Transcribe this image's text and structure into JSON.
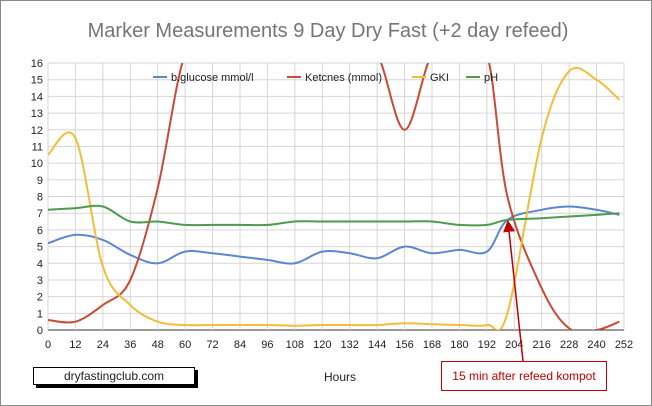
{
  "chart_data": {
    "type": "line",
    "title": "Marker Measurements 9 Day Dry Fast (+2 day refeed)",
    "xlabel": "Hours",
    "ylabel": "",
    "xlim": [
      0,
      252
    ],
    "ylim": [
      0,
      16
    ],
    "x_ticks": [
      0,
      12,
      24,
      36,
      48,
      60,
      72,
      84,
      96,
      108,
      120,
      132,
      144,
      156,
      168,
      180,
      192,
      204,
      216,
      228,
      240,
      252
    ],
    "y_ticks": [
      0,
      1,
      2,
      3,
      4,
      5,
      6,
      7,
      8,
      9,
      10,
      11,
      12,
      13,
      14,
      15,
      16
    ],
    "grid": true,
    "legend_position": "top",
    "source_label": "dryfastingclub.com",
    "annotation": {
      "text": "15 min after refeed kompot",
      "x": 201,
      "y": 6.6
    },
    "series": [
      {
        "name": "b.glucose mmol/l",
        "color": "#5b87d2",
        "points": [
          [
            0,
            5.2
          ],
          [
            12,
            5.7
          ],
          [
            24,
            5.4
          ],
          [
            36,
            4.5
          ],
          [
            48,
            4.0
          ],
          [
            60,
            4.7
          ],
          [
            72,
            4.6
          ],
          [
            84,
            4.4
          ],
          [
            96,
            4.2
          ],
          [
            108,
            4.0
          ],
          [
            120,
            4.7
          ],
          [
            132,
            4.6
          ],
          [
            144,
            4.3
          ],
          [
            156,
            5.0
          ],
          [
            168,
            4.6
          ],
          [
            180,
            4.8
          ],
          [
            192,
            4.7
          ],
          [
            201,
            6.6
          ],
          [
            216,
            7.2
          ],
          [
            228,
            7.4
          ],
          [
            240,
            7.2
          ],
          [
            250,
            6.9
          ]
        ]
      },
      {
        "name": "Ketcnes (mmol)",
        "color": "#c94a35",
        "points": [
          [
            0,
            0.6
          ],
          [
            12,
            0.5
          ],
          [
            24,
            1.5
          ],
          [
            36,
            3.0
          ],
          [
            48,
            8.5
          ],
          [
            60,
            16.5
          ],
          [
            72,
            16.5
          ],
          [
            84,
            16.5
          ],
          [
            96,
            16.5
          ],
          [
            108,
            16.5
          ],
          [
            120,
            16.5
          ],
          [
            132,
            16.5
          ],
          [
            144,
            16.5
          ],
          [
            156,
            12.0
          ],
          [
            168,
            16.5
          ],
          [
            180,
            16.5
          ],
          [
            192,
            16.5
          ],
          [
            201,
            8.0
          ],
          [
            216,
            2.5
          ],
          [
            228,
            0.1
          ],
          [
            240,
            0.0
          ],
          [
            250,
            0.5
          ]
        ]
      },
      {
        "name": "GKI",
        "color": "#f1bd3a",
        "points": [
          [
            0,
            10.5
          ],
          [
            12,
            11.5
          ],
          [
            24,
            3.8
          ],
          [
            36,
            1.5
          ],
          [
            48,
            0.5
          ],
          [
            60,
            0.3
          ],
          [
            72,
            0.3
          ],
          [
            84,
            0.3
          ],
          [
            96,
            0.3
          ],
          [
            108,
            0.25
          ],
          [
            120,
            0.3
          ],
          [
            132,
            0.3
          ],
          [
            144,
            0.3
          ],
          [
            156,
            0.4
          ],
          [
            168,
            0.35
          ],
          [
            180,
            0.3
          ],
          [
            192,
            0.3
          ],
          [
            201,
            1.0
          ],
          [
            216,
            11.5
          ],
          [
            228,
            15.5
          ],
          [
            240,
            15.0
          ],
          [
            250,
            13.8
          ]
        ]
      },
      {
        "name": "pH",
        "color": "#4e9a4f",
        "points": [
          [
            0,
            7.2
          ],
          [
            12,
            7.3
          ],
          [
            24,
            7.4
          ],
          [
            36,
            6.5
          ],
          [
            48,
            6.5
          ],
          [
            60,
            6.3
          ],
          [
            72,
            6.3
          ],
          [
            84,
            6.3
          ],
          [
            96,
            6.3
          ],
          [
            108,
            6.5
          ],
          [
            120,
            6.5
          ],
          [
            132,
            6.5
          ],
          [
            144,
            6.5
          ],
          [
            156,
            6.5
          ],
          [
            168,
            6.5
          ],
          [
            180,
            6.3
          ],
          [
            192,
            6.3
          ],
          [
            201,
            6.6
          ],
          [
            216,
            6.7
          ],
          [
            228,
            6.8
          ],
          [
            240,
            6.9
          ],
          [
            250,
            7.0
          ]
        ]
      }
    ]
  }
}
